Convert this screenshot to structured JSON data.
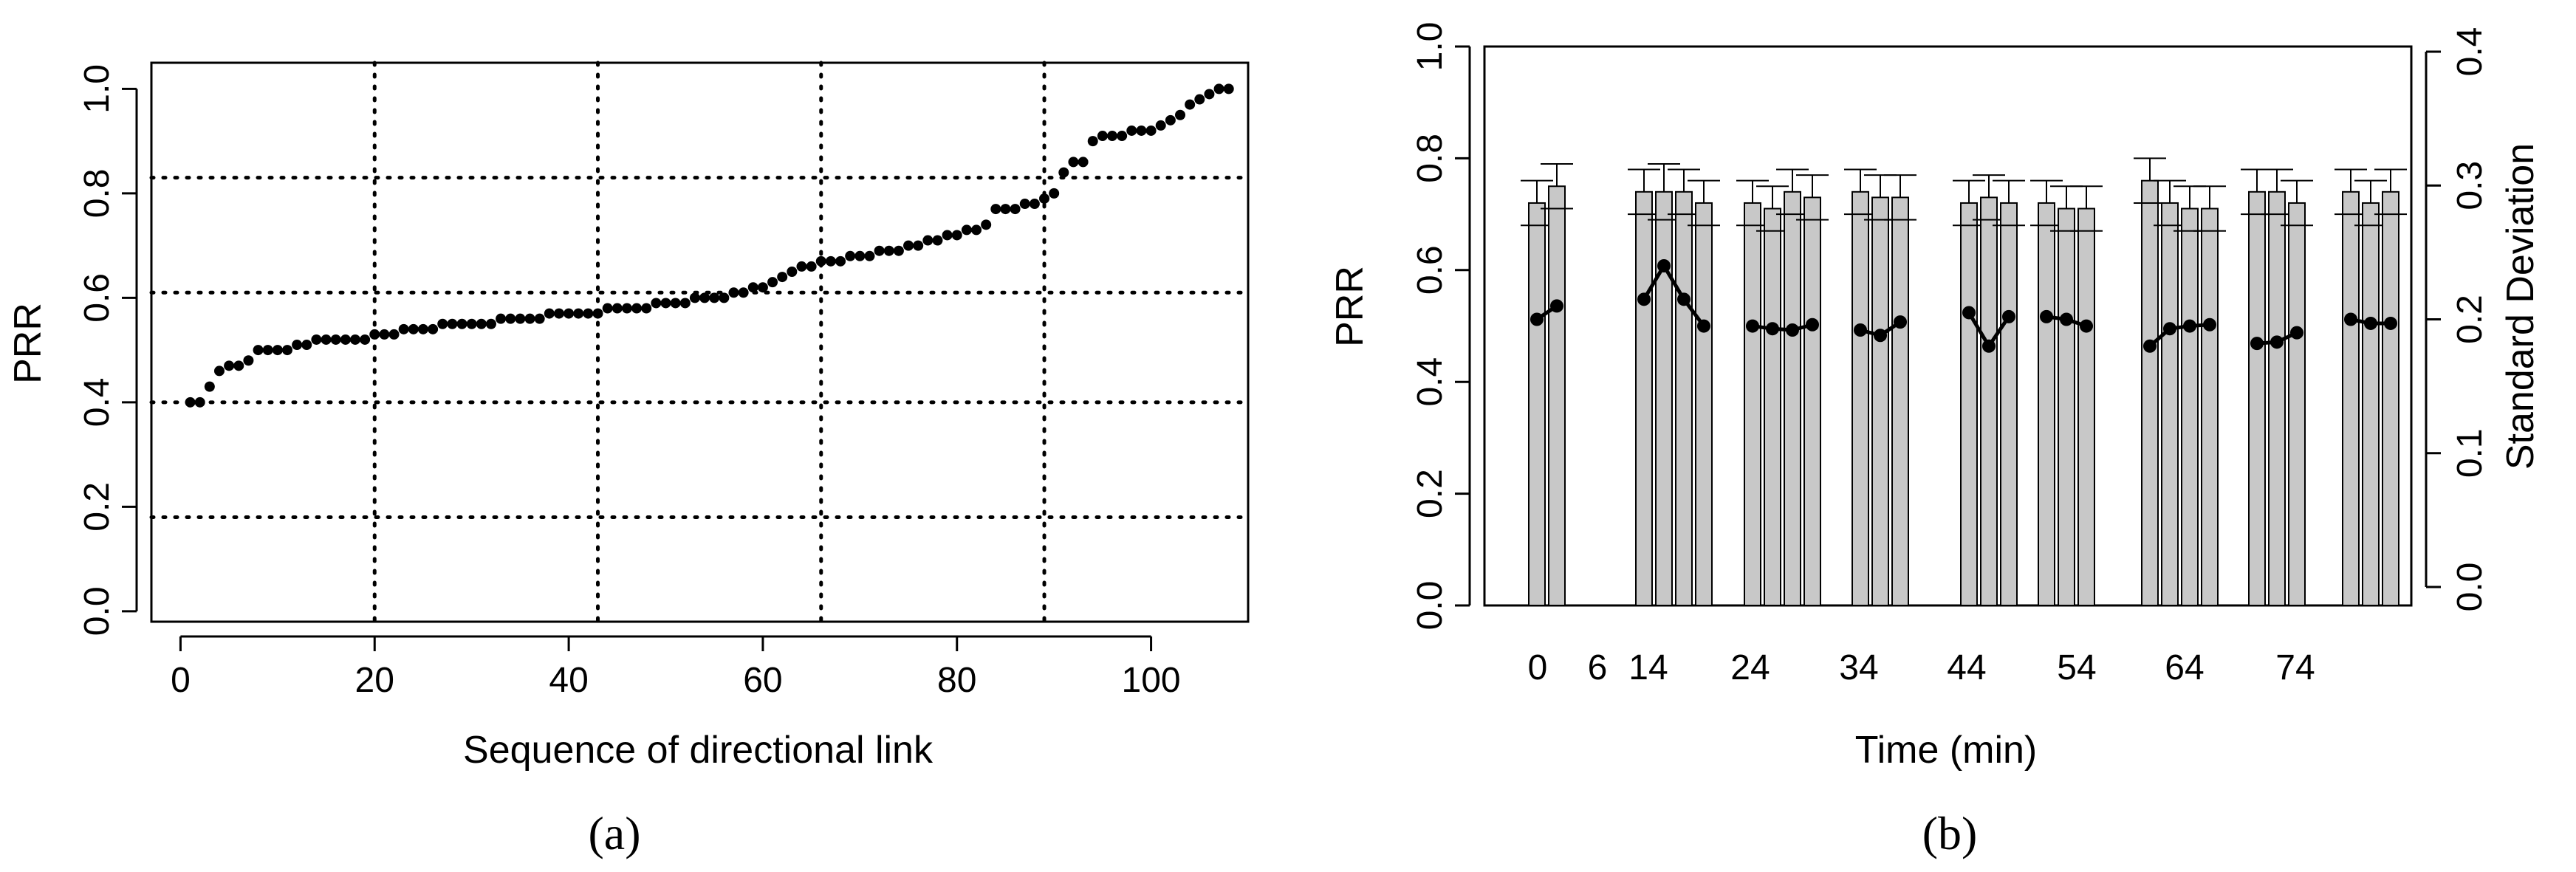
{
  "chart_data": [
    {
      "type": "scatter",
      "panel": "a",
      "caption": "(a)",
      "xlabel": "Sequence of directional link",
      "ylabel": "PRR",
      "xlim": [
        -3,
        110
      ],
      "ylim": [
        -0.02,
        1.05
      ],
      "xticks": [
        "0",
        "20",
        "40",
        "60",
        "80",
        "100"
      ],
      "yticks": [
        "0.0",
        "0.2",
        "0.4",
        "0.6",
        "0.8",
        "1.0"
      ],
      "grid_x": [
        20,
        43,
        66,
        89
      ],
      "grid_y": [
        0.18,
        0.4,
        0.61,
        0.83
      ],
      "points": [
        [
          1,
          0.4
        ],
        [
          2,
          0.4
        ],
        [
          3,
          0.43
        ],
        [
          4,
          0.46
        ],
        [
          5,
          0.47
        ],
        [
          6,
          0.47
        ],
        [
          7,
          0.48
        ],
        [
          8,
          0.5
        ],
        [
          9,
          0.5
        ],
        [
          10,
          0.5
        ],
        [
          11,
          0.5
        ],
        [
          12,
          0.51
        ],
        [
          13,
          0.51
        ],
        [
          14,
          0.52
        ],
        [
          15,
          0.52
        ],
        [
          16,
          0.52
        ],
        [
          17,
          0.52
        ],
        [
          18,
          0.52
        ],
        [
          19,
          0.52
        ],
        [
          20,
          0.53
        ],
        [
          21,
          0.53
        ],
        [
          22,
          0.53
        ],
        [
          23,
          0.54
        ],
        [
          24,
          0.54
        ],
        [
          25,
          0.54
        ],
        [
          26,
          0.54
        ],
        [
          27,
          0.55
        ],
        [
          28,
          0.55
        ],
        [
          29,
          0.55
        ],
        [
          30,
          0.55
        ],
        [
          31,
          0.55
        ],
        [
          32,
          0.55
        ],
        [
          33,
          0.56
        ],
        [
          34,
          0.56
        ],
        [
          35,
          0.56
        ],
        [
          36,
          0.56
        ],
        [
          37,
          0.56
        ],
        [
          38,
          0.57
        ],
        [
          39,
          0.57
        ],
        [
          40,
          0.57
        ],
        [
          41,
          0.57
        ],
        [
          42,
          0.57
        ],
        [
          43,
          0.57
        ],
        [
          44,
          0.58
        ],
        [
          45,
          0.58
        ],
        [
          46,
          0.58
        ],
        [
          47,
          0.58
        ],
        [
          48,
          0.58
        ],
        [
          49,
          0.59
        ],
        [
          50,
          0.59
        ],
        [
          51,
          0.59
        ],
        [
          52,
          0.59
        ],
        [
          53,
          0.6
        ],
        [
          54,
          0.6
        ],
        [
          55,
          0.6
        ],
        [
          56,
          0.6
        ],
        [
          57,
          0.61
        ],
        [
          58,
          0.61
        ],
        [
          59,
          0.62
        ],
        [
          60,
          0.62
        ],
        [
          61,
          0.63
        ],
        [
          62,
          0.64
        ],
        [
          63,
          0.65
        ],
        [
          64,
          0.66
        ],
        [
          65,
          0.66
        ],
        [
          66,
          0.67
        ],
        [
          67,
          0.67
        ],
        [
          68,
          0.67
        ],
        [
          69,
          0.68
        ],
        [
          70,
          0.68
        ],
        [
          71,
          0.68
        ],
        [
          72,
          0.69
        ],
        [
          73,
          0.69
        ],
        [
          74,
          0.69
        ],
        [
          75,
          0.7
        ],
        [
          76,
          0.7
        ],
        [
          77,
          0.71
        ],
        [
          78,
          0.71
        ],
        [
          79,
          0.72
        ],
        [
          80,
          0.72
        ],
        [
          81,
          0.73
        ],
        [
          82,
          0.73
        ],
        [
          83,
          0.74
        ],
        [
          84,
          0.77
        ],
        [
          85,
          0.77
        ],
        [
          86,
          0.77
        ],
        [
          87,
          0.78
        ],
        [
          88,
          0.78
        ],
        [
          89,
          0.79
        ],
        [
          90,
          0.8
        ],
        [
          91,
          0.84
        ],
        [
          92,
          0.86
        ],
        [
          93,
          0.86
        ],
        [
          94,
          0.9
        ],
        [
          95,
          0.91
        ],
        [
          96,
          0.91
        ],
        [
          97,
          0.91
        ],
        [
          98,
          0.92
        ],
        [
          99,
          0.92
        ],
        [
          100,
          0.92
        ],
        [
          101,
          0.93
        ],
        [
          102,
          0.94
        ],
        [
          103,
          0.95
        ],
        [
          104,
          0.97
        ],
        [
          105,
          0.98
        ],
        [
          106,
          0.99
        ],
        [
          107,
          1.0
        ],
        [
          108,
          1.0
        ]
      ]
    },
    {
      "type": "bar",
      "panel": "b",
      "caption": "(b)",
      "xlabel": "Time (min)",
      "ylabel": "PRR",
      "ylabel_right": "Standard Deviation",
      "ylim": [
        0,
        1.0
      ],
      "ylim_right": [
        0,
        0.4
      ],
      "yticks": [
        "0.0",
        "0.2",
        "0.4",
        "0.6",
        "0.8",
        "1.0"
      ],
      "yticks_right": [
        "0.0",
        "0.1",
        "0.2",
        "0.3",
        "0.4"
      ],
      "x_tick_labels": [
        "0",
        "6",
        "14",
        "24",
        "34",
        "44",
        "54",
        "64",
        "74"
      ],
      "bar_color": "#c8c8c8",
      "groups": [
        {
          "label": "0",
          "prr": [
            0.72,
            0.75
          ],
          "err": [
            0.04,
            0.04
          ],
          "sd": [
            0.2,
            0.21
          ]
        },
        {
          "label": "6",
          "prr": [],
          "err": [],
          "sd": []
        },
        {
          "label": "14",
          "prr": [
            0.74,
            0.74,
            0.74,
            0.72
          ],
          "err": [
            0.04,
            0.05,
            0.04,
            0.04
          ],
          "sd": [
            0.215,
            0.24,
            0.215,
            0.195
          ]
        },
        {
          "label": "24",
          "prr": [
            0.72,
            0.71,
            0.74,
            0.73
          ],
          "err": [
            0.04,
            0.04,
            0.04,
            0.04
          ],
          "sd": [
            0.195,
            0.193,
            0.192,
            0.196
          ]
        },
        {
          "label": "34",
          "prr": [
            0.74,
            0.73,
            0.73
          ],
          "err": [
            0.04,
            0.04,
            0.04
          ],
          "sd": [
            0.192,
            0.188,
            0.198
          ]
        },
        {
          "label": "44",
          "prr": [
            0.72,
            0.73,
            0.72
          ],
          "err": [
            0.04,
            0.04,
            0.04
          ],
          "sd": [
            0.205,
            0.18,
            0.202
          ]
        },
        {
          "label": "54",
          "prr": [
            0.72,
            0.71,
            0.71
          ],
          "err": [
            0.04,
            0.04,
            0.04
          ],
          "sd": [
            0.202,
            0.2,
            0.195
          ]
        },
        {
          "label": "64",
          "prr": [
            0.76,
            0.72,
            0.71,
            0.71
          ],
          "err": [
            0.04,
            0.04,
            0.04,
            0.04
          ],
          "sd": [
            0.18,
            0.193,
            0.195,
            0.196
          ]
        },
        {
          "label": "74",
          "prr": [
            0.74,
            0.74,
            0.72
          ],
          "err": [
            0.04,
            0.04,
            0.04
          ],
          "sd": [
            0.182,
            0.183,
            0.19
          ]
        },
        {
          "label": "",
          "prr": [
            0.74,
            0.72,
            0.74
          ],
          "err": [
            0.04,
            0.04,
            0.04
          ],
          "sd": [
            0.2,
            0.197,
            0.197
          ]
        }
      ]
    }
  ]
}
